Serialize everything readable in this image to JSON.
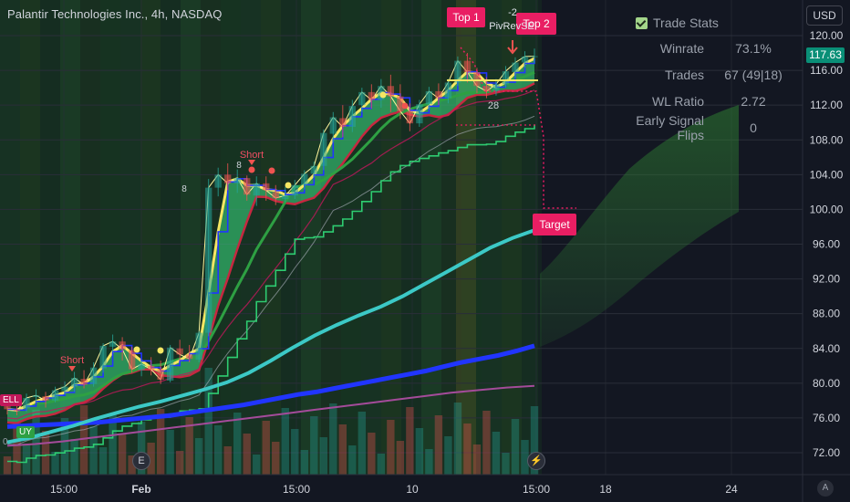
{
  "title": "Palantir Technologies Inc., 4h, NASDAQ",
  "currency": "USD",
  "last_price": "117.63",
  "stats": {
    "header": "Trade Stats",
    "rows": [
      {
        "label": "Winrate",
        "value": "73.1%"
      },
      {
        "label": "Trades",
        "value": "67 (49|18)"
      },
      {
        "label": "WL Ratio",
        "value": "2.72"
      },
      {
        "label": "Early Signal Flips",
        "value": "0"
      }
    ]
  },
  "labels": {
    "top1": "Top 1",
    "top2": "Top 2",
    "piv_num": "-2",
    "pivrevse": "PivRevSE",
    "target": "Target",
    "short1": "Short",
    "short2": "Short",
    "sell_partial": "ELL",
    "buy_partial": "UY",
    "zero_partial": "0",
    "tick_mark": "8",
    "mark_28": "28",
    "earnings_icon": "E",
    "flash_icon": "⚡",
    "corner": "A"
  },
  "chart_data": {
    "type": "candlestick",
    "title": "Palantir Technologies Inc., 4h, NASDAQ",
    "ylim": [
      70,
      122
    ],
    "yticks": [
      "120.00",
      "116.00",
      "112.00",
      "108.00",
      "104.00",
      "100.00",
      "96.00",
      "92.00",
      "88.00",
      "84.00",
      "80.00",
      "76.00",
      "72.00"
    ],
    "xticks": [
      "15:00",
      "Feb",
      "15:00",
      "10",
      "15:00",
      "18",
      "24"
    ],
    "candles": [
      {
        "o": 77.5,
        "h": 78.5,
        "c": 77.0,
        "l": 76.4
      },
      {
        "o": 77.0,
        "h": 78.2,
        "c": 76.8,
        "l": 76.3
      },
      {
        "o": 77.1,
        "h": 78.8,
        "c": 78.3,
        "l": 76.7
      },
      {
        "o": 78.4,
        "h": 79.3,
        "c": 78.6,
        "l": 77.8
      },
      {
        "o": 78.5,
        "h": 79.0,
        "c": 78.0,
        "l": 77.2
      },
      {
        "o": 78.0,
        "h": 79.6,
        "c": 79.2,
        "l": 77.8
      },
      {
        "o": 79.1,
        "h": 80.2,
        "c": 79.6,
        "l": 78.7
      },
      {
        "o": 79.6,
        "h": 81.3,
        "c": 80.6,
        "l": 79.0
      },
      {
        "o": 80.5,
        "h": 81.5,
        "c": 79.8,
        "l": 79.4
      },
      {
        "o": 79.9,
        "h": 82.4,
        "c": 81.8,
        "l": 79.6
      },
      {
        "o": 81.7,
        "h": 84.6,
        "c": 84.3,
        "l": 81.2
      },
      {
        "o": 84.2,
        "h": 85.6,
        "c": 84.8,
        "l": 83.6
      },
      {
        "o": 84.8,
        "h": 85.3,
        "c": 83.9,
        "l": 82.6
      },
      {
        "o": 83.8,
        "h": 84.2,
        "c": 81.6,
        "l": 81.2
      },
      {
        "o": 81.5,
        "h": 82.6,
        "c": 82.2,
        "l": 80.8
      },
      {
        "o": 82.0,
        "h": 83.0,
        "c": 81.6,
        "l": 80.9
      },
      {
        "o": 81.6,
        "h": 82.6,
        "c": 80.4,
        "l": 79.9
      },
      {
        "o": 80.3,
        "h": 84.4,
        "c": 84.1,
        "l": 80.1
      },
      {
        "o": 84.0,
        "h": 85.0,
        "c": 83.3,
        "l": 82.6
      },
      {
        "o": 83.3,
        "h": 84.4,
        "c": 82.8,
        "l": 82.4
      },
      {
        "o": 82.7,
        "h": 86.0,
        "c": 85.8,
        "l": 82.4
      },
      {
        "o": 85.8,
        "h": 103.5,
        "c": 102.5,
        "l": 85.4
      },
      {
        "o": 102.5,
        "h": 104.8,
        "c": 104.0,
        "l": 101.5
      },
      {
        "o": 104.0,
        "h": 105.3,
        "c": 103.0,
        "l": 102.2
      },
      {
        "o": 103.0,
        "h": 104.6,
        "c": 103.6,
        "l": 101.9
      },
      {
        "o": 103.6,
        "h": 103.9,
        "c": 101.7,
        "l": 101.0
      },
      {
        "o": 101.6,
        "h": 103.8,
        "c": 103.0,
        "l": 100.4
      },
      {
        "o": 103.0,
        "h": 103.8,
        "c": 102.2,
        "l": 101.0
      },
      {
        "o": 102.0,
        "h": 102.8,
        "c": 101.3,
        "l": 100.5
      },
      {
        "o": 101.2,
        "h": 102.6,
        "c": 101.6,
        "l": 100.8
      },
      {
        "o": 101.6,
        "h": 103.4,
        "c": 102.8,
        "l": 101.2
      },
      {
        "o": 102.8,
        "h": 104.5,
        "c": 104.1,
        "l": 102.3
      },
      {
        "o": 104.1,
        "h": 105.5,
        "c": 105.0,
        "l": 103.7
      },
      {
        "o": 105.0,
        "h": 109.2,
        "c": 108.8,
        "l": 104.5
      },
      {
        "o": 108.7,
        "h": 111.2,
        "c": 110.6,
        "l": 107.7
      },
      {
        "o": 110.5,
        "h": 112.0,
        "c": 109.5,
        "l": 108.3
      },
      {
        "o": 109.5,
        "h": 112.6,
        "c": 111.9,
        "l": 108.9
      },
      {
        "o": 112.0,
        "h": 114.0,
        "c": 113.5,
        "l": 111.2
      },
      {
        "o": 113.5,
        "h": 114.4,
        "c": 112.6,
        "l": 111.6
      },
      {
        "o": 112.6,
        "h": 115.0,
        "c": 114.2,
        "l": 111.7
      },
      {
        "o": 114.2,
        "h": 115.5,
        "c": 113.0,
        "l": 111.2
      },
      {
        "o": 113.0,
        "h": 114.4,
        "c": 111.3,
        "l": 110.4
      },
      {
        "o": 111.3,
        "h": 112.2,
        "c": 109.9,
        "l": 109.0
      },
      {
        "o": 109.9,
        "h": 112.6,
        "c": 112.1,
        "l": 109.5
      },
      {
        "o": 112.1,
        "h": 114.1,
        "c": 113.6,
        "l": 111.5
      },
      {
        "o": 113.6,
        "h": 114.5,
        "c": 112.8,
        "l": 112.0
      },
      {
        "o": 112.8,
        "h": 115.0,
        "c": 114.6,
        "l": 112.2
      },
      {
        "o": 114.6,
        "h": 117.6,
        "c": 117.1,
        "l": 114.2
      },
      {
        "o": 117.1,
        "h": 118.0,
        "c": 115.8,
        "l": 114.6
      },
      {
        "o": 115.8,
        "h": 116.3,
        "c": 114.2,
        "l": 113.4
      },
      {
        "o": 114.2,
        "h": 115.2,
        "c": 113.6,
        "l": 112.8
      },
      {
        "o": 113.6,
        "h": 115.0,
        "c": 114.4,
        "l": 113.1
      },
      {
        "o": 114.4,
        "h": 116.5,
        "c": 115.9,
        "l": 114.0
      },
      {
        "o": 115.8,
        "h": 117.5,
        "c": 116.9,
        "l": 115.1
      },
      {
        "o": 116.9,
        "h": 118.2,
        "c": 117.6,
        "l": 116.3
      },
      {
        "o": 117.6,
        "h": 118.5,
        "c": 117.63,
        "l": 116.8
      }
    ],
    "ma_series": [
      {
        "color": "#2135ff",
        "values": [
          75.0,
          75.1,
          75.2,
          75.3,
          75.4,
          75.5,
          75.7,
          75.9,
          76.1,
          76.3,
          76.6,
          76.9,
          77.2,
          77.5,
          77.9,
          78.3,
          78.7,
          79.0,
          79.4,
          79.8,
          80.2,
          80.6,
          81.0,
          81.4,
          81.9,
          82.4,
          82.8,
          83.2,
          83.7,
          84.3
        ]
      },
      {
        "color": "#3cc9c6",
        "values": [
          73.2,
          73.7,
          74.4,
          75.1,
          75.9,
          76.6,
          77.3,
          77.9,
          78.6,
          79.3,
          80.1,
          81.2,
          82.6,
          84.1,
          85.5,
          86.7,
          87.8,
          88.8,
          90.0,
          91.4,
          92.8,
          94.2,
          95.6,
          96.7,
          97.6
        ]
      },
      {
        "color": "#a44b9a",
        "values": [
          72.8,
          73.0,
          73.3,
          73.7,
          74.1,
          74.5,
          74.9,
          75.3,
          75.7,
          76.1,
          76.5,
          76.9,
          77.3,
          77.7,
          78.1,
          78.5,
          78.9,
          79.2,
          79.5,
          79.7
        ]
      }
    ],
    "annotations": [
      "Top 1",
      "Top 2",
      "PivRevSE",
      "-2",
      "Target",
      "Short",
      "Short"
    ],
    "stats": {
      "Winrate": "73.1%",
      "Trades": "67 (49|18)",
      "WL Ratio": "2.72",
      "Early Signal Flips": "0"
    }
  }
}
